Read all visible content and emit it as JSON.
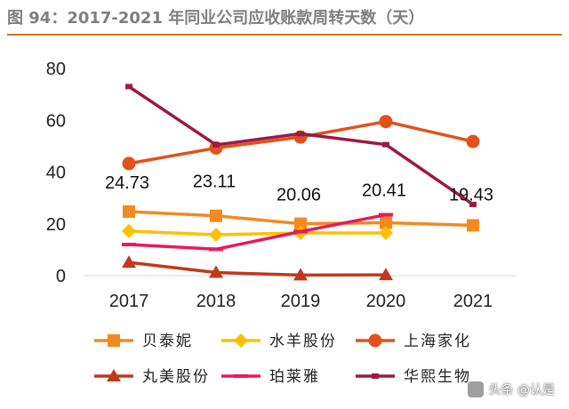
{
  "figure": {
    "title": "图 94：2017-2021 年同业公司应收账款周转天数（天）",
    "watermark": "头条 @认是",
    "accent_color": "#d8731a"
  },
  "chart_data": {
    "type": "line",
    "categories": [
      "2017",
      "2018",
      "2019",
      "2020",
      "2021"
    ],
    "ylim": [
      0,
      80
    ],
    "yticks": [
      0,
      20,
      40,
      60,
      80
    ],
    "grid": false,
    "legend_position": "bottom",
    "series": [
      {
        "name": "贝泰妮",
        "color": "#f28a1f",
        "marker": "square",
        "values": [
          24.73,
          23.11,
          20.06,
          20.41,
          19.43
        ],
        "labels": [
          "24.73",
          "23.11",
          "20.06",
          "20.41",
          "19.43"
        ]
      },
      {
        "name": "水羊股份",
        "color": "#ffc000",
        "marker": "diamond",
        "values": [
          17.2,
          15.8,
          16.5,
          16.5,
          null
        ]
      },
      {
        "name": "上海家化",
        "color": "#e2511b",
        "marker": "circle",
        "values": [
          43.3,
          49.3,
          53.5,
          59.5,
          51.8
        ]
      },
      {
        "name": "丸美股份",
        "color": "#c0391b",
        "marker": "triangle",
        "values": [
          5.1,
          1.2,
          0.2,
          0.3,
          null
        ]
      },
      {
        "name": "珀莱雅",
        "color": "#e8195c",
        "marker": "dash",
        "values": [
          12.0,
          10.2,
          17.0,
          23.5,
          null
        ]
      },
      {
        "name": "华熙生物",
        "color": "#9b1b45",
        "marker": "small-square",
        "values": [
          73.0,
          50.5,
          54.8,
          50.6,
          27.5
        ]
      }
    ]
  }
}
